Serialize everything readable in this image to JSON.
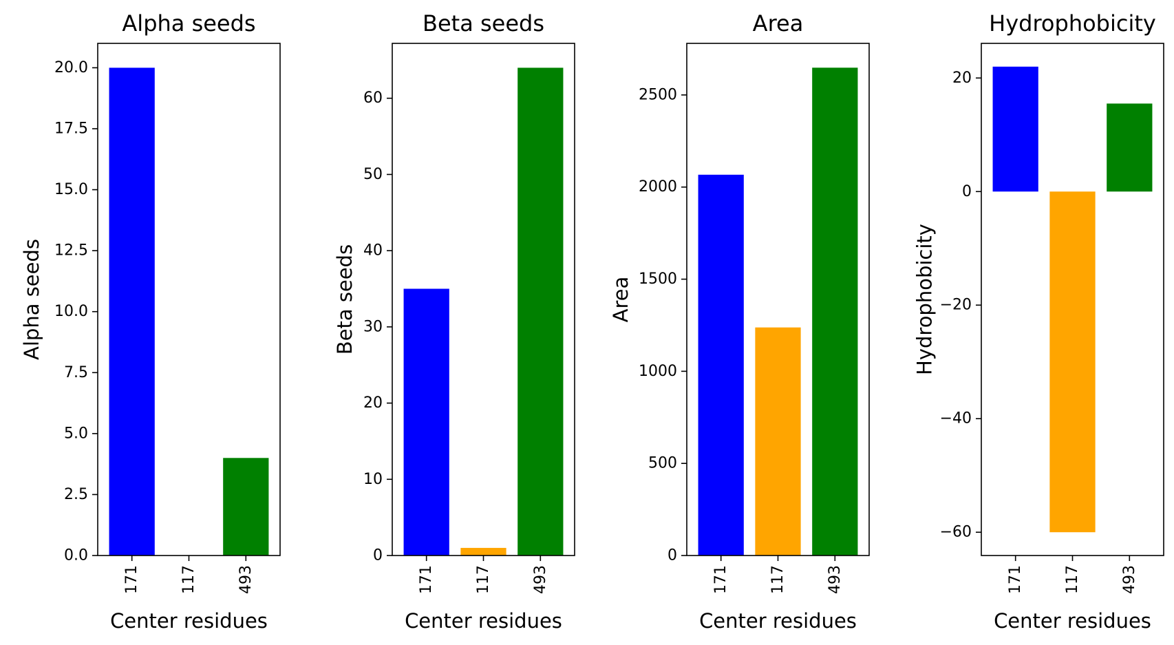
{
  "chart_data": [
    {
      "type": "bar",
      "title": "Alpha seeds",
      "xlabel": "Center residues",
      "ylabel": "Alpha seeds",
      "categories": [
        "171",
        "117",
        "493"
      ],
      "values": [
        20,
        0,
        4
      ],
      "colors": [
        "#0000ff",
        "#ffa500",
        "#008000"
      ],
      "ylim": [
        0,
        21
      ],
      "yticks": [
        0,
        2.5,
        5,
        7.5,
        10,
        12.5,
        15,
        17.5,
        20
      ],
      "ytick_labels": [
        "0.0",
        "2.5",
        "5.0",
        "7.5",
        "10.0",
        "12.5",
        "15.0",
        "17.5",
        "20.0"
      ],
      "grid": false
    },
    {
      "type": "bar",
      "title": "Beta seeds",
      "xlabel": "Center residues",
      "ylabel": "Beta seeds",
      "categories": [
        "171",
        "117",
        "493"
      ],
      "values": [
        35,
        1,
        64
      ],
      "colors": [
        "#0000ff",
        "#ffa500",
        "#008000"
      ],
      "ylim": [
        0,
        67.2
      ],
      "yticks": [
        0,
        10,
        20,
        30,
        40,
        50,
        60
      ],
      "ytick_labels": [
        "0",
        "10",
        "20",
        "30",
        "40",
        "50",
        "60"
      ],
      "grid": false
    },
    {
      "type": "bar",
      "title": "Area",
      "xlabel": "Center residues",
      "ylabel": "Area",
      "categories": [
        "171",
        "117",
        "493"
      ],
      "values": [
        2067,
        1238,
        2648
      ],
      "colors": [
        "#0000ff",
        "#ffa500",
        "#008000"
      ],
      "ylim": [
        0,
        2780
      ],
      "yticks": [
        0,
        500,
        1000,
        1500,
        2000,
        2500
      ],
      "ytick_labels": [
        "0",
        "500",
        "1000",
        "1500",
        "2000",
        "2500"
      ],
      "grid": false
    },
    {
      "type": "bar",
      "title": "Hydrophobicity",
      "xlabel": "Center residues",
      "ylabel": "Hydrophobicity",
      "categories": [
        "171",
        "117",
        "493"
      ],
      "values": [
        22,
        -60,
        15.5
      ],
      "colors": [
        "#0000ff",
        "#ffa500",
        "#008000"
      ],
      "ylim": [
        -64.1,
        26.1
      ],
      "yticks": [
        -60,
        -40,
        -20,
        0,
        20
      ],
      "ytick_labels": [
        "−60",
        "−40",
        "−20",
        "0",
        "20"
      ],
      "grid": false
    }
  ]
}
